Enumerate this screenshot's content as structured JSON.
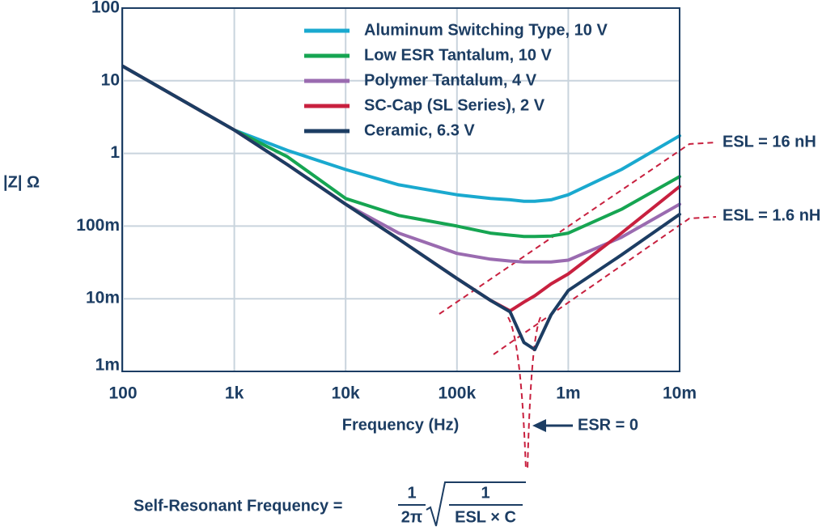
{
  "chart_data": {
    "type": "line",
    "x_label": "Frequency (Hz)",
    "y_label": "|Z| Ω",
    "log_x": true,
    "log_y": true,
    "grid": true,
    "xlim": [
      100,
      10000000
    ],
    "ylim": [
      0.001,
      100
    ],
    "xticks": [
      100,
      {
        "value": 1000,
        "label": "1k"
      },
      {
        "value": 10000,
        "label": "10k"
      },
      {
        "value": 100000,
        "label": "100k"
      },
      {
        "value": 1000000,
        "label": "1m"
      },
      {
        "value": 10000000,
        "label": "10m"
      }
    ],
    "yticks": [
      {
        "value": 0.001,
        "label": "1m"
      },
      {
        "value": 0.01,
        "label": "10m"
      },
      {
        "value": 0.1,
        "label": "100m"
      },
      1,
      10,
      100
    ],
    "x": [
      100,
      1000,
      3000,
      10000,
      30000,
      100000,
      200000,
      300000,
      400000,
      500000,
      700000,
      1000000,
      3000000,
      10000000
    ],
    "series": [
      {
        "name": "Aluminum Switching Type, 10 V",
        "color": "#1aa9cf",
        "values": [
          15.8,
          2.1,
          1.1,
          0.6,
          0.37,
          0.27,
          0.24,
          0.23,
          0.22,
          0.22,
          0.23,
          0.27,
          0.6,
          1.75
        ]
      },
      {
        "name": "Low ESR Tantalum, 10 V",
        "color": "#16a552",
        "values": [
          15.8,
          2.1,
          0.9,
          0.24,
          0.14,
          0.1,
          0.08,
          0.075,
          0.072,
          0.072,
          0.073,
          0.08,
          0.17,
          0.48
        ]
      },
      {
        "name": "Polymer Tantalum, 4 V",
        "color": "#9a6bb0",
        "values": [
          15.8,
          2.1,
          0.7,
          0.2,
          0.08,
          0.042,
          0.035,
          0.033,
          0.032,
          0.032,
          0.032,
          0.034,
          0.07,
          0.2
        ]
      },
      {
        "name": "SC-Cap (SL Series), 2 V",
        "color": "#c8203f",
        "values": [
          15.8,
          2.1,
          0.7,
          0.2,
          0.066,
          0.019,
          0.0095,
          0.0068,
          0.009,
          0.011,
          0.016,
          0.022,
          0.08,
          0.35
        ]
      },
      {
        "name": "Ceramic, 6.3 V",
        "color": "#1c3d63",
        "values": [
          15.8,
          2.1,
          0.7,
          0.2,
          0.066,
          0.019,
          0.0095,
          0.0066,
          0.0025,
          0.002,
          0.006,
          0.013,
          0.04,
          0.145
        ]
      }
    ],
    "annotations": {
      "esl_high": "ESL = 16 nH",
      "esl_low": "ESL = 1.6 nH",
      "esr": "ESR = 0",
      "formula_lhs": "Self-Resonant Frequency =",
      "formula_num1": "1",
      "formula_den1": "2π",
      "formula_num2": "1",
      "formula_den2": "ESL × C"
    }
  }
}
